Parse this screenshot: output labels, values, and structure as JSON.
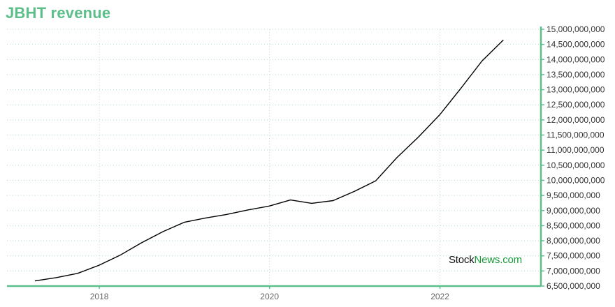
{
  "chart_data": {
    "type": "line",
    "title": "JBHT revenue",
    "x": [
      "2017-03-31",
      "2017-06-30",
      "2017-09-30",
      "2017-12-31",
      "2018-03-31",
      "2018-06-30",
      "2018-09-30",
      "2018-12-31",
      "2019-03-31",
      "2019-06-30",
      "2019-09-30",
      "2019-12-31",
      "2020-03-31",
      "2020-06-30",
      "2020-09-30",
      "2020-12-31",
      "2021-03-31",
      "2021-06-30",
      "2021-09-30",
      "2021-12-31",
      "2022-03-31",
      "2022-06-30",
      "2022-09-30"
    ],
    "series": [
      {
        "values": [
          6670000000,
          6780000000,
          6920000000,
          7190000000,
          7520000000,
          7930000000,
          8300000000,
          8610000000,
          8750000000,
          8870000000,
          9020000000,
          9150000000,
          9350000000,
          9240000000,
          9330000000,
          9640000000,
          9980000000,
          10750000000,
          11430000000,
          12170000000,
          13040000000,
          13950000000,
          14650000000
        ],
        "color": "#000000"
      }
    ],
    "x_ticks": [
      "2018",
      "2020",
      "2022"
    ],
    "y_ticks": [
      "6,500,000,000",
      "7,000,000,000",
      "7,500,000,000",
      "8,000,000,000",
      "8,500,000,000",
      "9,000,000,000",
      "9,500,000,000",
      "10,000,000,000",
      "10,500,000,000",
      "11,000,000,000",
      "11,500,000,000",
      "12,000,000,000",
      "12,500,000,000",
      "13,000,000,000",
      "13,500,000,000",
      "14,000,000,000",
      "14,500,000,000",
      "15,000,000,000"
    ],
    "ylim": [
      6500000000,
      15000000000
    ],
    "xlim": [
      "2016-12-01",
      "2023-03-10"
    ],
    "y_axis_side": "right",
    "grid": true,
    "xlabel": "",
    "ylabel": "",
    "axis_color": "#5cbf8a",
    "grid_color": "#b5dccd"
  },
  "watermark": {
    "part1": "Stock",
    "part2": "News.com"
  }
}
